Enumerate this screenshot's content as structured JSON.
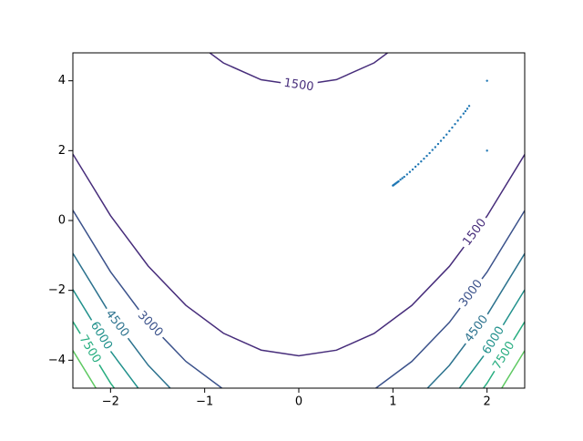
{
  "chart_data": {
    "type": "contour",
    "xlim": [
      -2.4,
      2.4
    ],
    "ylim": [
      -4.8,
      4.8
    ],
    "xticks": [
      {
        "value": -2,
        "label": "−2"
      },
      {
        "value": -1,
        "label": "−1"
      },
      0,
      1,
      2
    ],
    "yticks": [
      {
        "value": -4,
        "label": "−4"
      },
      {
        "value": -2,
        "label": "−2"
      },
      0,
      2,
      4
    ],
    "lines": [
      {
        "level": 1500,
        "color": "#472d7b",
        "x": [
          -1.2,
          -0.8,
          -0.4,
          0,
          0.4,
          0.8,
          1.2
        ],
        "y": [
          5.307,
          4.509,
          4.03,
          3.872,
          4.033,
          4.513,
          5.313
        ]
      },
      {
        "level": 1500,
        "color": "#472d7b",
        "x": [
          -2.4,
          -2.0,
          -1.6,
          -1.2,
          -0.8,
          -0.4,
          0,
          0.4,
          0.8,
          1.2,
          1.6,
          2.0,
          2.4
        ],
        "y": [
          1.902,
          0.139,
          -1.304,
          -2.427,
          -3.229,
          -3.71,
          -3.872,
          -3.713,
          -3.233,
          -2.433,
          -1.313,
          0.128,
          1.89
        ]
      },
      {
        "level": 3000,
        "color": "#3b528b",
        "x": [
          -2.4,
          -2.0,
          -1.6,
          -1.2,
          -0.8,
          -0.4,
          0,
          0.4,
          0.8,
          1.2,
          1.6,
          2.0,
          2.4
        ],
        "y": [
          0.293,
          -1.469,
          -2.911,
          -4.033,
          -4.834,
          -5.315,
          -5.476,
          -5.317,
          -4.837,
          -4.037,
          -2.917,
          -1.476,
          0.285
        ]
      },
      {
        "level": 4500,
        "color": "#2c728e",
        "x": [
          -2.4,
          -2.0,
          -1.6,
          -1.2
        ],
        "y": [
          -0.94,
          -2.701,
          -4.143,
          -5.265
        ]
      },
      {
        "level": 4500,
        "color": "#2c728e",
        "x": [
          1.2,
          1.6,
          2.0,
          2.4
        ],
        "y": [
          -5.268,
          -4.148,
          -2.707,
          -0.947
        ]
      },
      {
        "level": 6000,
        "color": "#21918c",
        "x": [
          -2.4,
          -2.0,
          -1.6
        ],
        "y": [
          -1.978,
          -3.74,
          -5.182
        ]
      },
      {
        "level": 6000,
        "color": "#21918c",
        "x": [
          1.6,
          2.0,
          2.4
        ],
        "y": [
          -5.186,
          -3.745,
          -1.985
        ]
      },
      {
        "level": 7500,
        "color": "#28ae80",
        "x": [
          -2.4,
          -2.0,
          -1.6
        ],
        "y": [
          -2.894,
          -4.655,
          -6.096
        ]
      },
      {
        "level": 7500,
        "color": "#28ae80",
        "x": [
          1.6,
          2.0,
          2.4
        ],
        "y": [
          -6.1,
          -4.66,
          -2.899
        ]
      },
      {
        "level": 9000,
        "color": "#5ec962",
        "x": [
          -2.4,
          -2.0
        ],
        "y": [
          -3.721,
          -5.482
        ]
      },
      {
        "level": 9000,
        "color": "#5ec962",
        "x": [
          2.0,
          2.4
        ],
        "y": [
          -5.486,
          -3.726
        ]
      }
    ],
    "points": {
      "color": "#1f77b4",
      "x": [
        2,
        2,
        1.81,
        1.79,
        1.77,
        1.75,
        1.72,
        1.69,
        1.66,
        1.63,
        1.6,
        1.57,
        1.54,
        1.51,
        1.48,
        1.45,
        1.42,
        1.39,
        1.36,
        1.33,
        1.3,
        1.27,
        1.24,
        1.21,
        1.18,
        1.15,
        1.12,
        1.1,
        1.08,
        1.06,
        1.05,
        1.04,
        1.03,
        1.02,
        1.01,
        1.005,
        1.0
      ],
      "y": [
        4,
        2,
        3.28,
        3.2,
        3.13,
        3.06,
        2.96,
        2.86,
        2.76,
        2.66,
        2.56,
        2.46,
        2.37,
        2.28,
        2.19,
        2.1,
        2.02,
        1.93,
        1.85,
        1.77,
        1.69,
        1.61,
        1.54,
        1.46,
        1.39,
        1.32,
        1.25,
        1.21,
        1.17,
        1.12,
        1.1,
        1.08,
        1.06,
        1.04,
        1.02,
        1.01,
        1.0
      ]
    }
  }
}
